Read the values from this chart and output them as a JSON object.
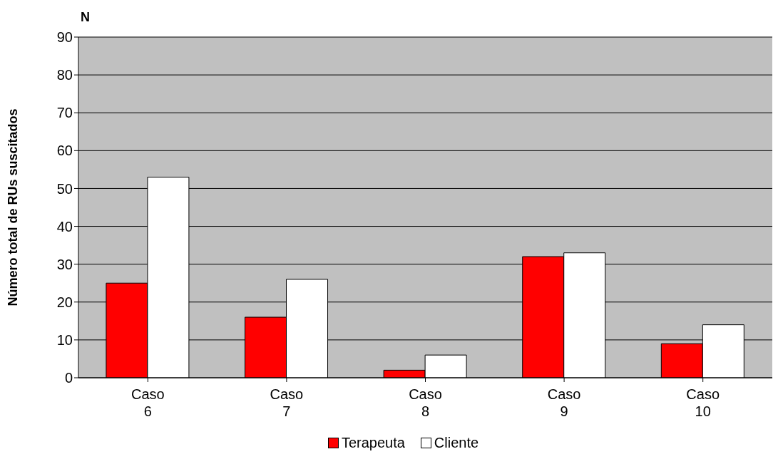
{
  "chart_data": {
    "type": "bar",
    "ylabel": "Número total de RUs suscitados",
    "annotations": [
      "N"
    ],
    "categories": [
      "Caso 6",
      "Caso 7",
      "Caso 8",
      "Caso 9",
      "Caso 10"
    ],
    "series": [
      {
        "name": "Terapeuta",
        "color": "#ff0000",
        "values": [
          25,
          16,
          2,
          32,
          9
        ]
      },
      {
        "name": "Cliente",
        "color": "#ffffff",
        "values": [
          53,
          26,
          6,
          33,
          14
        ]
      }
    ],
    "ylim": [
      0,
      90
    ],
    "yticks": [
      0,
      10,
      20,
      30,
      40,
      50,
      60,
      70,
      80,
      90
    ],
    "grid": "y",
    "legend": "bottom"
  }
}
